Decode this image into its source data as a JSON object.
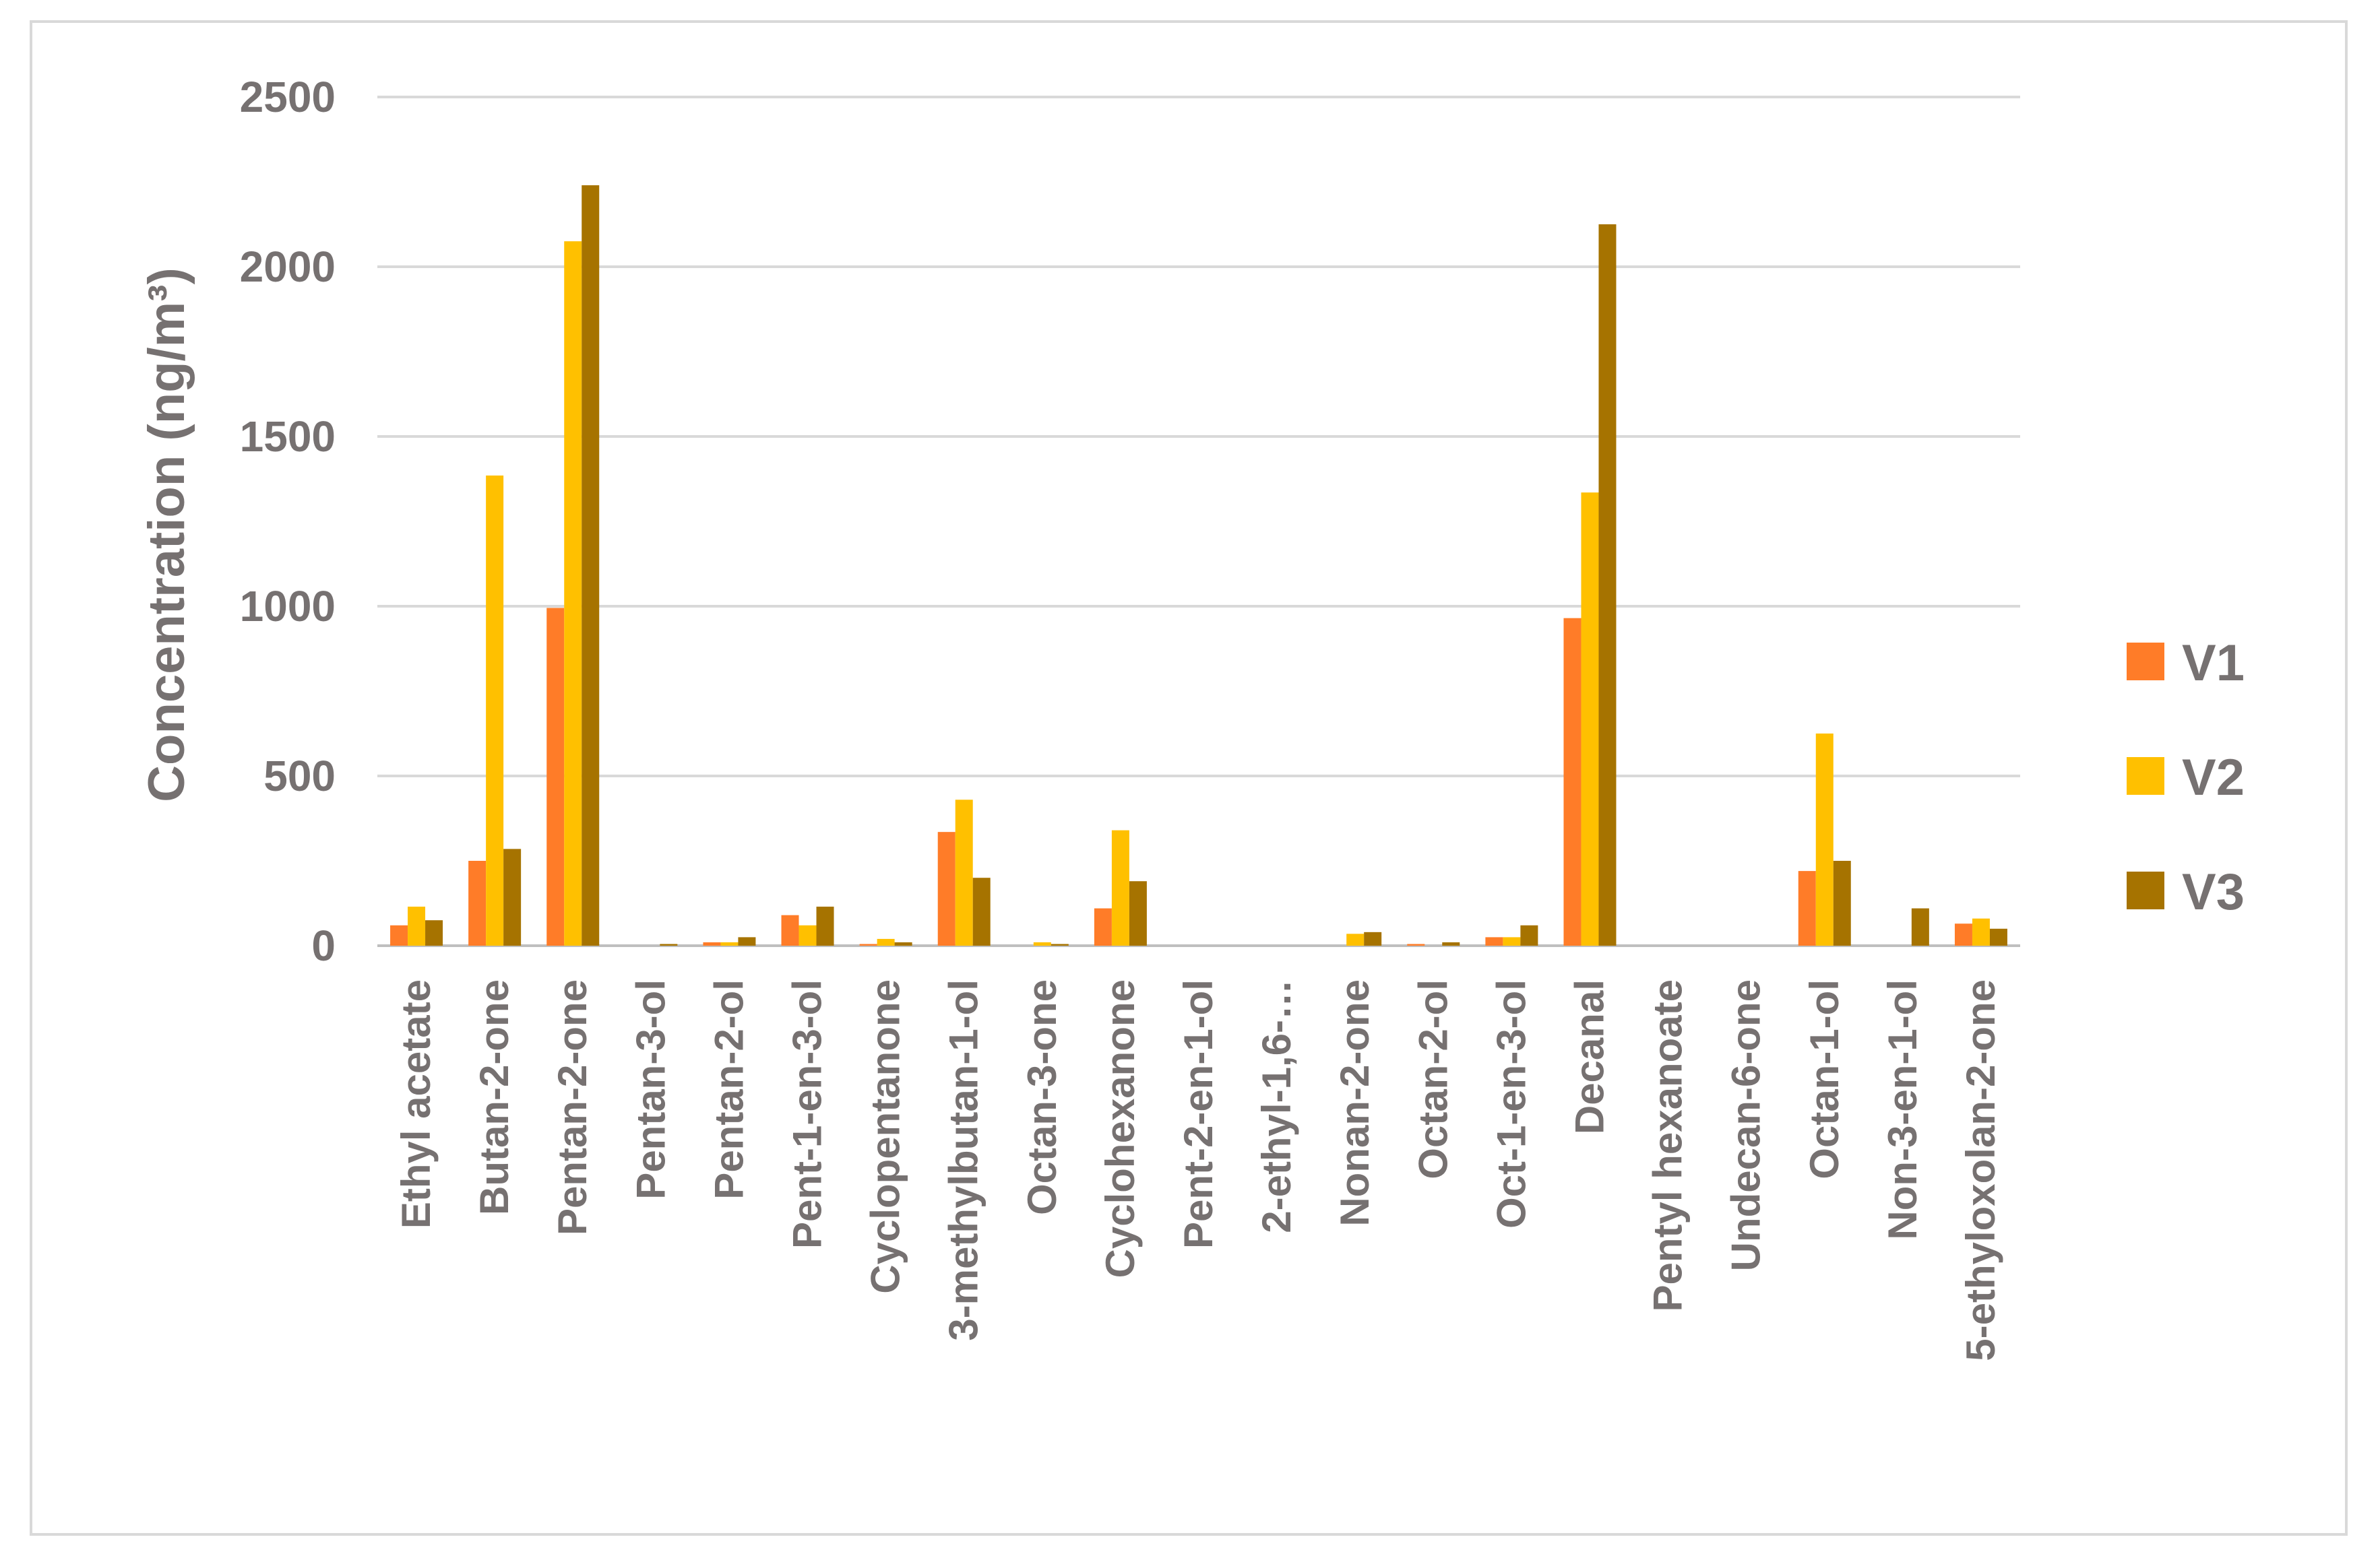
{
  "chart_data": {
    "type": "bar",
    "title": "",
    "xlabel": "",
    "ylabel": "Concentration (ng/m³)",
    "ylim": [
      0,
      2500
    ],
    "yticks": [
      0,
      500,
      1000,
      1500,
      2000,
      2500
    ],
    "grid": true,
    "legend_position": "right",
    "categories": [
      "Ethyl acetate",
      "Butan-2-one",
      "Pentan-2-one",
      "Pentan-3-ol",
      "Pentan-2-ol",
      "Pent-1-en-3-ol",
      "Cyclopentanone",
      "3-methylbutan-1-ol",
      "Octan-3-one",
      "Cyclohexanone",
      "Pent-2-en-1-ol",
      "2-ethyl-1,6-…",
      "Nonan-2-one",
      "Octan-2-ol",
      "Oct-1-en-3-ol",
      "Decanal",
      "Pentyl hexanoate",
      "Undecan-6-one",
      "Octan-1-ol",
      "Non-3-en-1-ol",
      "5-ethyloxolan-2-one"
    ],
    "series": [
      {
        "name": "V1",
        "color": "#FF7C28",
        "values": [
          60,
          250,
          995,
          0,
          10,
          90,
          5,
          335,
          0,
          110,
          0,
          0,
          0,
          5,
          25,
          965,
          0,
          0,
          220,
          0,
          65
        ]
      },
      {
        "name": "V2",
        "color": "#FFC000",
        "values": [
          115,
          1385,
          2075,
          0,
          10,
          60,
          20,
          430,
          10,
          340,
          0,
          0,
          35,
          0,
          25,
          1335,
          0,
          0,
          625,
          0,
          80
        ]
      },
      {
        "name": "V3",
        "color": "#A67300",
        "values": [
          75,
          285,
          2240,
          5,
          25,
          115,
          10,
          200,
          5,
          190,
          0,
          0,
          40,
          10,
          60,
          2125,
          0,
          0,
          250,
          110,
          50
        ]
      }
    ]
  }
}
